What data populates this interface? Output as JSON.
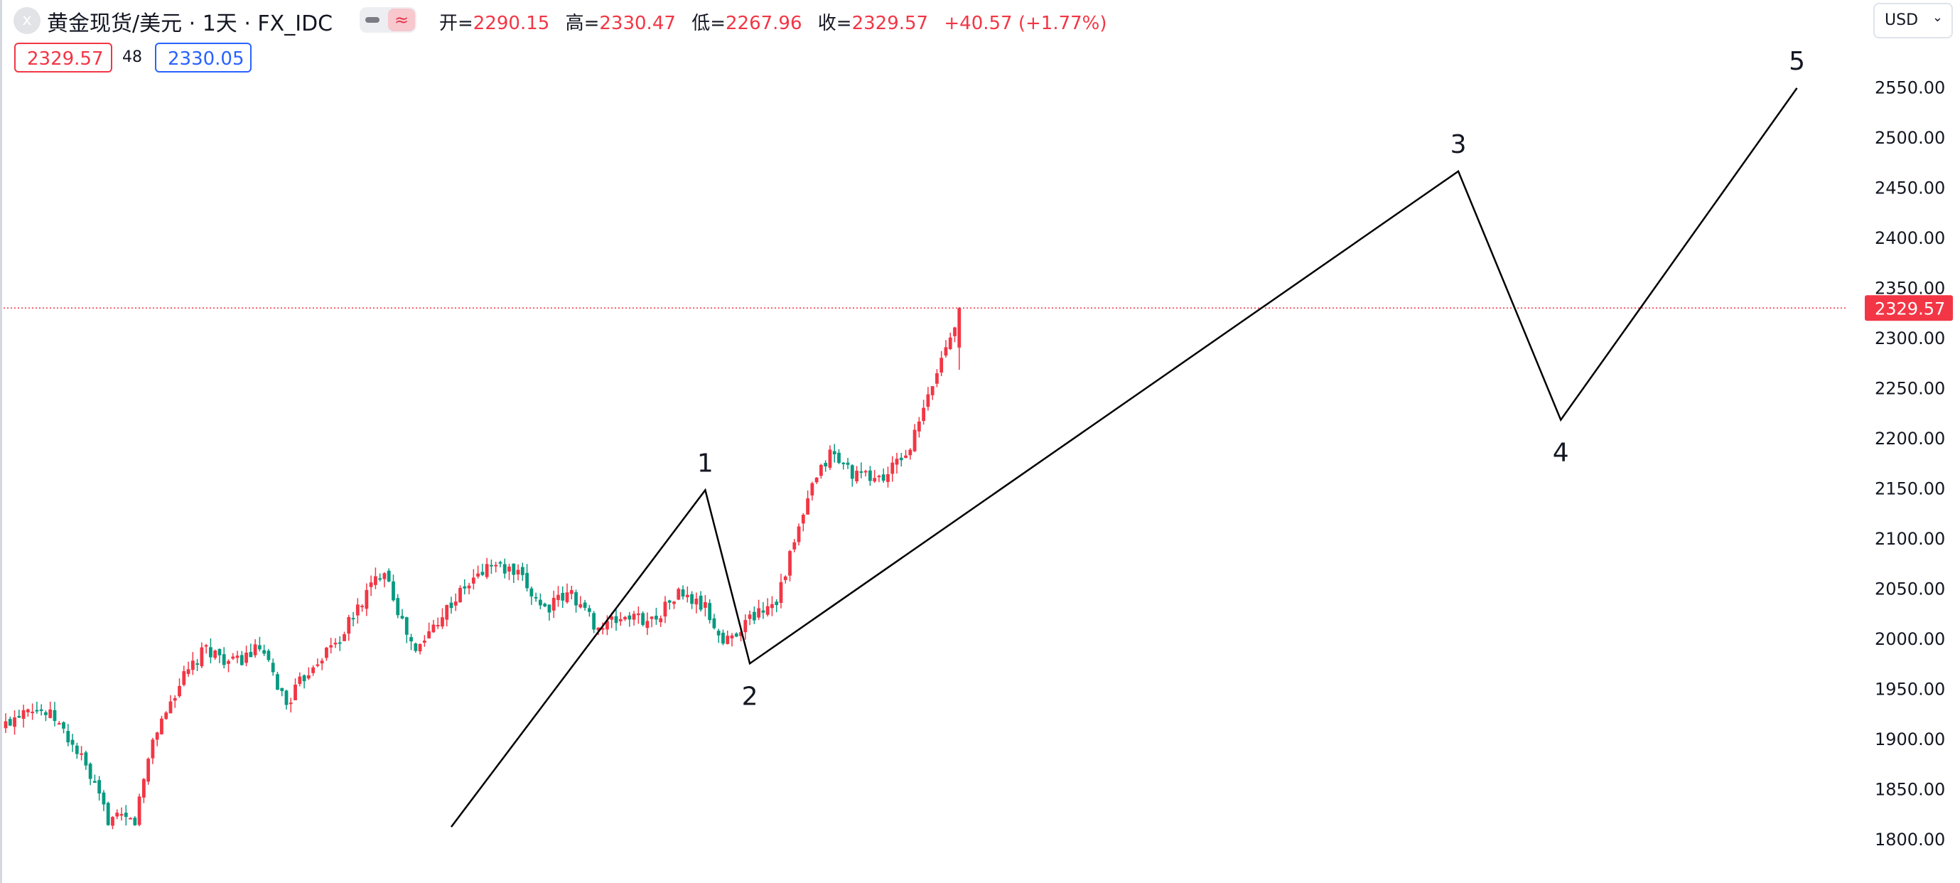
{
  "header": {
    "close_glyph": "x",
    "symbol_title": "黄金现货/美元 · 1天 · FX_IDC",
    "toggle_icon_glyph": "≈",
    "ohlc": {
      "open_label": "开=",
      "open": "2290.15",
      "high_label": "高=",
      "high": "2330.47",
      "low_label": "低=",
      "low": "2267.96",
      "close_label": "收=",
      "close": "2329.57",
      "change": "+40.57 (+1.77%)"
    },
    "sell_price": "2329.57",
    "spread": "48",
    "buy_price": "2330.05",
    "currency": "USD"
  },
  "colors": {
    "up": "#f23645",
    "down": "#089981",
    "buy": "#2962ff",
    "wave_line": "#000000",
    "last_price_line": "#f23645",
    "text": "#131722"
  },
  "chart_data": {
    "type": "candlestick",
    "title": "黄金现货/美元 · 1天 · FX_IDC",
    "currency": "USD",
    "y_axis": {
      "side": "right",
      "ylim": [
        1785,
        2580
      ],
      "ticks": [
        "1800.00",
        "1850.00",
        "1900.00",
        "1950.00",
        "2000.00",
        "2050.00",
        "2100.00",
        "2150.00",
        "2200.00",
        "2250.00",
        "2300.00",
        "2350.00",
        "2400.00",
        "2450.00",
        "2500.00",
        "2550.00"
      ]
    },
    "last_price": {
      "value": 2329.57,
      "label": "2329.57"
    },
    "bar_count": 215,
    "candle_anchors": [
      [
        0,
        1920
      ],
      [
        5,
        1910
      ],
      [
        10,
        1942
      ],
      [
        16,
        1965
      ],
      [
        22,
        1970
      ],
      [
        28,
        1955
      ],
      [
        34,
        1930
      ],
      [
        40,
        1905
      ],
      [
        46,
        1892
      ],
      [
        52,
        1918
      ],
      [
        58,
        1940
      ],
      [
        64,
        1925
      ],
      [
        70,
        1910
      ],
      [
        76,
        1935
      ],
      [
        82,
        1920
      ],
      [
        88,
        1880
      ],
      [
        94,
        1820
      ],
      [
        100,
        1818
      ],
      [
        104,
        1900
      ],
      [
        110,
        1955
      ],
      [
        116,
        1990
      ],
      [
        122,
        1975
      ],
      [
        128,
        1990
      ],
      [
        134,
        1935
      ],
      [
        140,
        1975
      ],
      [
        146,
        2000
      ],
      [
        152,
        2045
      ],
      [
        156,
        2072
      ],
      [
        160,
        2015
      ],
      [
        163,
        1985
      ],
      [
        168,
        2020
      ],
      [
        174,
        2050
      ],
      [
        180,
        2075
      ],
      [
        186,
        2062
      ],
      [
        192,
        2030
      ],
      [
        198,
        2045
      ],
      [
        204,
        2010
      ],
      [
        210,
        2022
      ],
      [
        216,
        2018
      ],
      [
        222,
        2045
      ],
      [
        228,
        2030
      ],
      [
        232,
        1995
      ],
      [
        238,
        2020
      ],
      [
        244,
        2040
      ],
      [
        248,
        2095
      ],
      [
        252,
        2150
      ],
      [
        256,
        2185
      ],
      [
        262,
        2162
      ],
      [
        268,
        2160
      ],
      [
        274,
        2190
      ],
      [
        278,
        2240
      ],
      [
        282,
        2292
      ],
      [
        285,
        2329.57
      ]
    ],
    "wave_points": [
      {
        "label": "",
        "bar": 100,
        "price": 1812
      },
      {
        "label": "1",
        "bar": 157,
        "price": 2148
      },
      {
        "label": "2",
        "bar": 167,
        "price": 1975
      },
      {
        "label": "3",
        "bar": 326,
        "price": 2466
      },
      {
        "label": "4",
        "bar": 349,
        "price": 2218
      },
      {
        "label": "5",
        "bar": 402,
        "price": 2549
      }
    ],
    "grid": false
  }
}
